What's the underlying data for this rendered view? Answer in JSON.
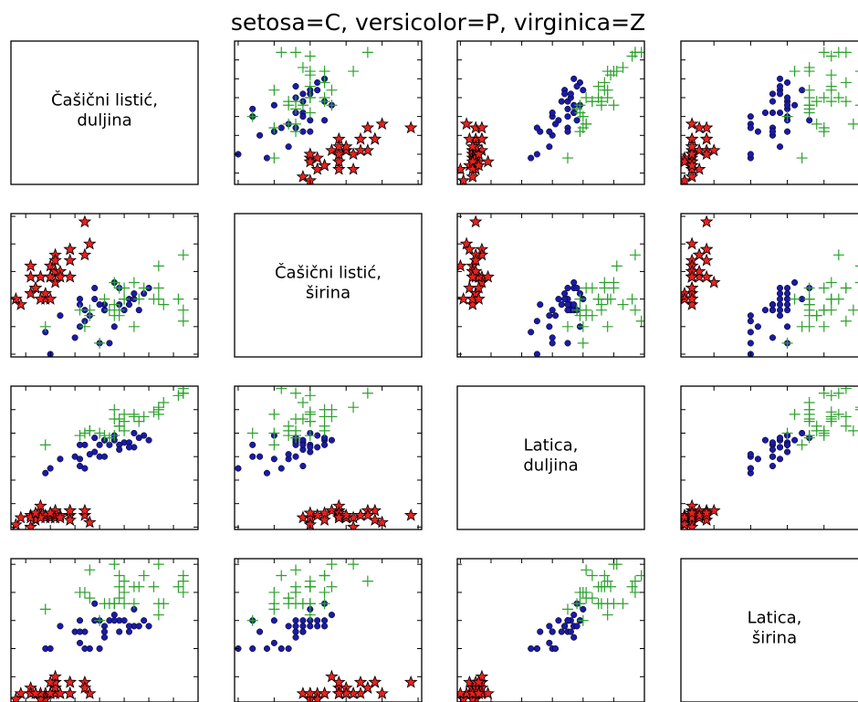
{
  "title": "setosa=C, versicolor=P, virginica=Z",
  "colors": {
    "setosa": "#e8211f",
    "versicolor": "#1a1aa6",
    "virginica": "#2ca02c"
  },
  "markers": {
    "setosa": "star",
    "versicolor": "circle",
    "virginica": "plus"
  },
  "variables": [
    [
      "Čašični listić,",
      "duljina"
    ],
    [
      "Čašični listić,",
      "širina"
    ],
    [
      "Latica,",
      "duljina"
    ],
    [
      "Latica,",
      "širina"
    ]
  ],
  "chart_data": {
    "type": "scatter",
    "title": "setosa=C, versicolor=P, virginica=Z",
    "layout": "scatter-matrix 4x4",
    "grid": false,
    "ticks_labeled": false,
    "series": [
      {
        "marker": "star",
        "color": "#e8211f",
        "points": [
          [
            5.1,
            3.5,
            1.4,
            0.2
          ],
          [
            4.9,
            3.0,
            1.4,
            0.2
          ],
          [
            4.7,
            3.2,
            1.3,
            0.2
          ],
          [
            4.6,
            3.1,
            1.5,
            0.2
          ],
          [
            5.0,
            3.6,
            1.4,
            0.2
          ],
          [
            5.4,
            3.9,
            1.7,
            0.4
          ],
          [
            4.6,
            3.4,
            1.4,
            0.3
          ],
          [
            5.0,
            3.4,
            1.5,
            0.2
          ],
          [
            4.4,
            2.9,
            1.4,
            0.2
          ],
          [
            4.9,
            3.1,
            1.5,
            0.1
          ],
          [
            5.4,
            3.7,
            1.5,
            0.2
          ],
          [
            4.8,
            3.4,
            1.6,
            0.2
          ],
          [
            4.8,
            3.0,
            1.4,
            0.1
          ],
          [
            4.3,
            3.0,
            1.1,
            0.1
          ],
          [
            5.8,
            4.0,
            1.2,
            0.2
          ],
          [
            5.7,
            4.4,
            1.5,
            0.4
          ],
          [
            5.4,
            3.9,
            1.3,
            0.4
          ],
          [
            5.1,
            3.5,
            1.4,
            0.3
          ],
          [
            5.7,
            3.8,
            1.7,
            0.3
          ],
          [
            5.1,
            3.8,
            1.5,
            0.3
          ],
          [
            5.4,
            3.4,
            1.7,
            0.2
          ],
          [
            5.1,
            3.7,
            1.5,
            0.4
          ],
          [
            4.6,
            3.6,
            1.0,
            0.2
          ],
          [
            5.1,
            3.3,
            1.7,
            0.5
          ],
          [
            4.8,
            3.4,
            1.9,
            0.2
          ],
          [
            5.0,
            3.0,
            1.6,
            0.2
          ],
          [
            5.0,
            3.4,
            1.6,
            0.4
          ],
          [
            5.2,
            3.5,
            1.5,
            0.2
          ],
          [
            5.2,
            3.4,
            1.4,
            0.2
          ],
          [
            4.7,
            3.2,
            1.6,
            0.2
          ]
        ]
      },
      {
        "marker": "circle",
        "color": "#1a1aa6",
        "points": [
          [
            7.0,
            3.2,
            4.7,
            1.4
          ],
          [
            6.4,
            3.2,
            4.5,
            1.5
          ],
          [
            6.9,
            3.1,
            4.9,
            1.5
          ],
          [
            5.5,
            2.3,
            4.0,
            1.3
          ],
          [
            6.5,
            2.8,
            4.6,
            1.5
          ],
          [
            5.7,
            2.8,
            4.5,
            1.3
          ],
          [
            6.3,
            3.3,
            4.7,
            1.6
          ],
          [
            4.9,
            2.4,
            3.3,
            1.0
          ],
          [
            6.6,
            2.9,
            4.6,
            1.3
          ],
          [
            5.2,
            2.7,
            3.9,
            1.4
          ],
          [
            5.0,
            2.0,
            3.5,
            1.0
          ],
          [
            5.9,
            3.0,
            4.2,
            1.5
          ],
          [
            6.0,
            2.2,
            4.0,
            1.0
          ],
          [
            6.1,
            2.9,
            4.7,
            1.4
          ],
          [
            5.6,
            2.9,
            3.6,
            1.3
          ],
          [
            6.7,
            3.1,
            4.4,
            1.4
          ],
          [
            5.6,
            3.0,
            4.5,
            1.5
          ],
          [
            5.8,
            2.7,
            4.1,
            1.0
          ],
          [
            6.2,
            2.2,
            4.5,
            1.5
          ],
          [
            5.6,
            2.5,
            3.9,
            1.1
          ],
          [
            5.9,
            3.2,
            4.8,
            1.8
          ],
          [
            6.1,
            2.8,
            4.0,
            1.3
          ],
          [
            6.3,
            2.5,
            4.9,
            1.5
          ],
          [
            6.1,
            2.8,
            4.7,
            1.2
          ],
          [
            6.4,
            2.9,
            4.3,
            1.3
          ],
          [
            6.6,
            3.0,
            4.4,
            1.4
          ],
          [
            6.8,
            2.8,
            4.8,
            1.4
          ],
          [
            6.7,
            3.0,
            5.0,
            1.7
          ],
          [
            6.0,
            2.9,
            4.5,
            1.5
          ],
          [
            5.7,
            2.6,
            3.5,
            1.0
          ]
        ]
      },
      {
        "marker": "plus",
        "color": "#2ca02c",
        "points": [
          [
            6.3,
            3.3,
            6.0,
            2.5
          ],
          [
            5.8,
            2.7,
            5.1,
            1.9
          ],
          [
            7.1,
            3.0,
            5.9,
            2.1
          ],
          [
            6.3,
            2.9,
            5.6,
            1.8
          ],
          [
            6.5,
            3.0,
            5.8,
            2.2
          ],
          [
            7.6,
            3.0,
            6.6,
            2.1
          ],
          [
            4.9,
            2.5,
            4.5,
            1.7
          ],
          [
            7.3,
            2.9,
            6.3,
            1.8
          ],
          [
            6.7,
            2.5,
            5.8,
            1.8
          ],
          [
            7.2,
            3.6,
            6.1,
            2.5
          ],
          [
            6.5,
            3.2,
            5.1,
            2.0
          ],
          [
            6.4,
            2.7,
            5.3,
            1.9
          ],
          [
            6.8,
            3.0,
            5.5,
            2.1
          ],
          [
            5.7,
            2.5,
            5.0,
            2.0
          ],
          [
            5.8,
            2.8,
            5.1,
            2.4
          ],
          [
            6.4,
            3.2,
            5.3,
            2.3
          ],
          [
            6.5,
            3.0,
            5.5,
            1.8
          ],
          [
            7.7,
            3.8,
            6.7,
            2.2
          ],
          [
            7.7,
            2.6,
            6.9,
            2.3
          ],
          [
            6.0,
            2.2,
            5.0,
            1.5
          ],
          [
            6.9,
            3.2,
            5.7,
            2.3
          ],
          [
            5.6,
            2.8,
            4.9,
            2.0
          ],
          [
            7.7,
            2.8,
            6.7,
            2.0
          ],
          [
            6.3,
            2.7,
            4.9,
            1.8
          ],
          [
            6.7,
            3.3,
            5.7,
            2.1
          ],
          [
            7.2,
            3.2,
            6.0,
            1.8
          ],
          [
            6.2,
            2.8,
            4.8,
            1.8
          ],
          [
            6.1,
            3.0,
            4.9,
            1.8
          ],
          [
            6.4,
            2.8,
            5.6,
            2.1
          ],
          [
            7.2,
            3.0,
            5.8,
            1.6
          ]
        ]
      }
    ],
    "variable_ranges": [
      [
        4.2,
        8.0
      ],
      [
        1.95,
        4.55
      ],
      [
        0.9,
        7.0
      ],
      [
        0.05,
        2.6
      ]
    ]
  }
}
